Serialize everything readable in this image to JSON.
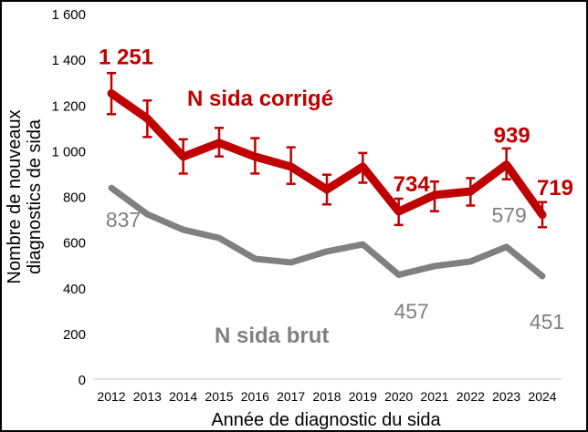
{
  "chart_data": {
    "type": "line",
    "xlabel": "Année de diagnostic du sida",
    "ylabel_lines": [
      "Nombre de nouveaux",
      "diagnostics de sida"
    ],
    "ylim": [
      0,
      1600
    ],
    "yticks": [
      0,
      200,
      400,
      600,
      800,
      1000,
      1200,
      1400,
      1600
    ],
    "ytick_labels": [
      "0",
      "200",
      "400",
      "600",
      "800",
      "1 000",
      "1 200",
      "1 400",
      "1 600"
    ],
    "grid": false,
    "categories": [
      "2012",
      "2013",
      "2014",
      "2015",
      "2016",
      "2017",
      "2018",
      "2019",
      "2020",
      "2021",
      "2022",
      "2023",
      "2024"
    ],
    "series": [
      {
        "name": "N sida corrigé",
        "color": "#C00000",
        "values": [
          1251,
          1141,
          974,
          1034,
          974,
          930,
          830,
          930,
          734,
          806,
          822,
          939,
          719
        ],
        "error_low": [
          1160,
          1060,
          900,
          975,
          900,
          855,
          765,
          860,
          675,
          735,
          760,
          875,
          665
        ],
        "error_high": [
          1340,
          1220,
          1050,
          1100,
          1055,
          1015,
          895,
          990,
          790,
          865,
          880,
          1010,
          775
        ],
        "data_labels": [
          {
            "category": "2012",
            "text": "1 251"
          },
          {
            "category": "2020",
            "text": "734"
          },
          {
            "category": "2023",
            "text": "939"
          },
          {
            "category": "2024",
            "text": "719"
          }
        ]
      },
      {
        "name": "N sida brut",
        "color": "#808080",
        "values": [
          837,
          722,
          654,
          618,
          527,
          511,
          559,
          590,
          457,
          495,
          515,
          579,
          451
        ],
        "data_labels": [
          {
            "category": "2012",
            "text": "837"
          },
          {
            "category": "2020",
            "text": "457"
          },
          {
            "category": "2023",
            "text": "579"
          },
          {
            "category": "2024",
            "text": "451"
          }
        ]
      }
    ]
  }
}
